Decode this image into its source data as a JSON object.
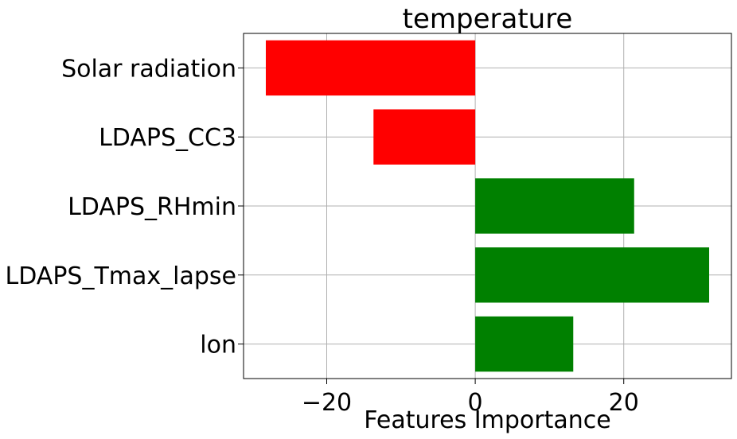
{
  "chart_data": {
    "type": "bar",
    "orientation": "horizontal",
    "title": "temperature",
    "xlabel": "Features Importance",
    "ylabel": "",
    "categories": [
      "Solar radiation",
      "LDAPS_CC3",
      "LDAPS_RHmin",
      "LDAPS_Tmax_lapse",
      "lon"
    ],
    "values": [
      -28.2,
      -13.7,
      21.4,
      31.5,
      13.2
    ],
    "xlim": [
      -31.2,
      34.5
    ],
    "xticks": [
      -20,
      0,
      20
    ],
    "xtick_labels": [
      "−20",
      "0",
      "20"
    ],
    "grid": true,
    "colors": {
      "positive": "#008000",
      "negative": "#ff0000",
      "grid": "#b0b0b0",
      "axis": "#000000"
    }
  }
}
